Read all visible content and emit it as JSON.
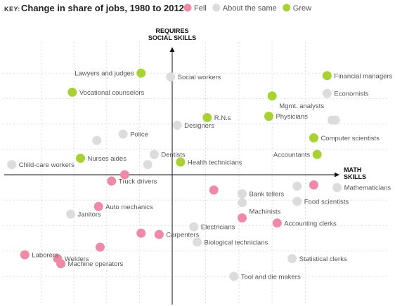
{
  "header": {
    "key_label": "KEY:",
    "title": "Change in share of jobs, 1980 to 2012"
  },
  "colors": {
    "fell": "#ef8aa6",
    "same": "#dcdcdc",
    "grew": "#a8d233"
  },
  "chart_data": {
    "type": "scatter",
    "title": "Change in share of jobs, 1980 to 2012",
    "xlabel": "MATH SKILLS",
    "ylabel": "REQUIRES SOCIAL SKILLS",
    "xlabel_lines": [
      "MATH",
      "SKILLS"
    ],
    "ylabel_lines": [
      "REQUIRES",
      "SOCIAL SKILLS"
    ],
    "xlim": [
      -100,
      100
    ],
    "ylim": [
      -100,
      100
    ],
    "grid": true,
    "legend_position": "top",
    "legend": [
      {
        "key": "fell",
        "label": "Fell"
      },
      {
        "key": "same",
        "label": "About the same"
      },
      {
        "key": "grew",
        "label": "Grew"
      }
    ],
    "points": [
      {
        "label": "Lawyers and judges",
        "x": -19,
        "y": 80,
        "cat": "grew",
        "side": "left"
      },
      {
        "label": "Social workers",
        "x": -1,
        "y": 77,
        "cat": "same",
        "side": "right"
      },
      {
        "label": "Vocational counselors",
        "x": -61,
        "y": 65,
        "cat": "grew",
        "side": "right"
      },
      {
        "label": "Financial managers",
        "x": 93,
        "y": 78,
        "cat": "grew",
        "side": "right"
      },
      {
        "label": "Economists",
        "x": 93,
        "y": 64,
        "cat": "same",
        "side": "right"
      },
      {
        "label": "Mgmt. analysts",
        "x": 60,
        "y": 62,
        "cat": "grew",
        "side": "below"
      },
      {
        "label": "Physicians",
        "x": 58,
        "y": 46,
        "cat": "grew",
        "side": "right"
      },
      {
        "label": "R.N.s",
        "x": 21,
        "y": 45,
        "cat": "grew",
        "side": "right"
      },
      {
        "label": "",
        "x": 96,
        "y": 43,
        "cat": "same",
        "side": "none"
      },
      {
        "label": "",
        "x": 98,
        "y": 43,
        "cat": "same",
        "side": "none"
      },
      {
        "label": "Designers",
        "x": 3,
        "y": 39,
        "cat": "same",
        "side": "right"
      },
      {
        "label": "Police",
        "x": -30,
        "y": 32,
        "cat": "same",
        "side": "right"
      },
      {
        "label": "",
        "x": -46,
        "y": 27,
        "cat": "same",
        "side": "none"
      },
      {
        "label": "Computer scientists",
        "x": 85,
        "y": 29,
        "cat": "grew",
        "side": "right"
      },
      {
        "label": "Dentists",
        "x": -11,
        "y": 16,
        "cat": "same",
        "side": "right"
      },
      {
        "label": "Accountants",
        "x": 87,
        "y": 16,
        "cat": "grew",
        "side": "left"
      },
      {
        "label": "Nurses aides",
        "x": -56,
        "y": 13,
        "cat": "grew",
        "side": "right"
      },
      {
        "label": "Health technicians",
        "x": 5,
        "y": 10,
        "cat": "grew",
        "side": "right"
      },
      {
        "label": "",
        "x": -15,
        "y": 8,
        "cat": "same",
        "side": "none"
      },
      {
        "label": "Child-care workers",
        "x": -98,
        "y": 8,
        "cat": "same",
        "side": "right"
      },
      {
        "label": "",
        "x": -29,
        "y": 0,
        "cat": "fell",
        "side": "none"
      },
      {
        "label": "Truck drivers",
        "x": -37,
        "y": -5,
        "cat": "fell",
        "side": "right"
      },
      {
        "label": "",
        "x": 75,
        "y": -9,
        "cat": "same",
        "side": "none"
      },
      {
        "label": "",
        "x": 85,
        "y": -8,
        "cat": "fell",
        "side": "none"
      },
      {
        "label": "Mathematicians",
        "x": 99,
        "y": -10,
        "cat": "same",
        "side": "right"
      },
      {
        "label": "",
        "x": 25,
        "y": -12,
        "cat": "fell",
        "side": "none"
      },
      {
        "label": "Bank tellers",
        "x": 42,
        "y": -15,
        "cat": "same",
        "side": "right"
      },
      {
        "label": "",
        "x": 42,
        "y": -22,
        "cat": "same",
        "side": "none"
      },
      {
        "label": "Food scientists",
        "x": 75,
        "y": -21,
        "cat": "same",
        "side": "right"
      },
      {
        "label": "Auto mechanics",
        "x": -45,
        "y": -25,
        "cat": "fell",
        "side": "right"
      },
      {
        "label": "Janitors",
        "x": -62,
        "y": -31,
        "cat": "same",
        "side": "right"
      },
      {
        "label": "Machinists",
        "x": 42,
        "y": -34,
        "cat": "fell",
        "side": "above"
      },
      {
        "label": "Accounting clerks",
        "x": 63,
        "y": -38,
        "cat": "fell",
        "side": "right"
      },
      {
        "label": "Electricians",
        "x": 13,
        "y": -41,
        "cat": "same",
        "side": "right"
      },
      {
        "label": "",
        "x": -19,
        "y": -46,
        "cat": "fell",
        "side": "none"
      },
      {
        "label": "Carpenters",
        "x": -8,
        "y": -47,
        "cat": "fell",
        "side": "right"
      },
      {
        "label": "Biological technicians",
        "x": 15,
        "y": -53,
        "cat": "same",
        "side": "right"
      },
      {
        "label": "",
        "x": -44,
        "y": -57,
        "cat": "fell",
        "side": "none"
      },
      {
        "label": "Laborers",
        "x": -90,
        "y": -63,
        "cat": "fell",
        "side": "right"
      },
      {
        "label": "Welders",
        "x": -70,
        "y": -66,
        "cat": "fell",
        "side": "right"
      },
      {
        "label": "Machine operators",
        "x": -68,
        "y": -70,
        "cat": "fell",
        "side": "right"
      },
      {
        "label": "Statistical clerks",
        "x": 72,
        "y": -66,
        "cat": "same",
        "side": "right"
      },
      {
        "label": "Tool and die makers",
        "x": 37,
        "y": -80,
        "cat": "same",
        "side": "right"
      }
    ]
  }
}
